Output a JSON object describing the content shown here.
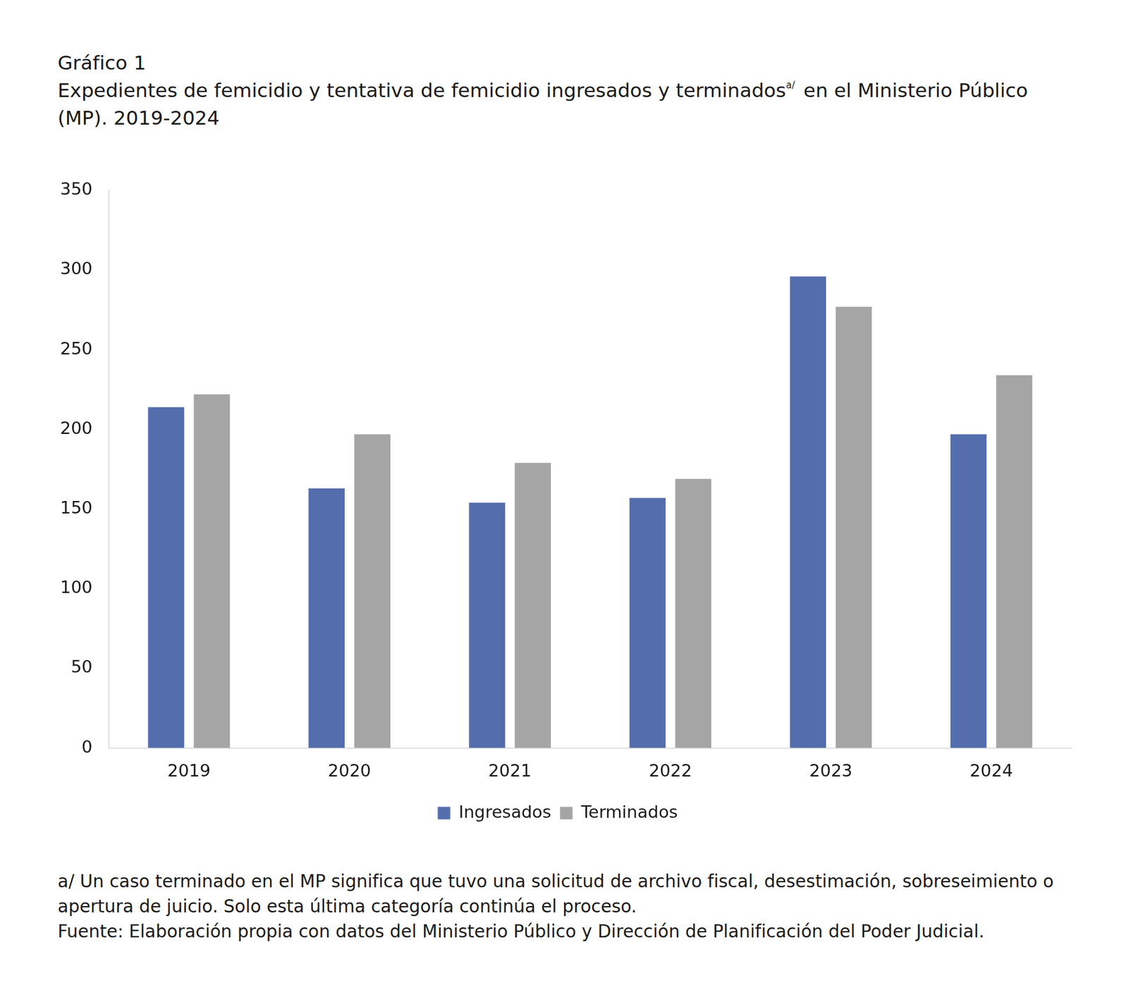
{
  "chart_data": {
    "type": "bar",
    "title": "Gráfico 1",
    "subtitle": [
      "Expedientes de femicidio y tentativa de femicidio ingresados y terminados",
      "a/",
      " en el Ministerio Público (MP). 2019-2024"
    ],
    "categories": [
      "2019",
      "2020",
      "2021",
      "2022",
      "2023",
      "2024"
    ],
    "series": [
      {
        "name": "Ingresados",
        "color": "#546dac",
        "values": [
          214,
          163,
          154,
          157,
          296,
          197
        ]
      },
      {
        "name": "Terminados",
        "color": "#a5a5a5",
        "values": [
          222,
          197,
          179,
          169,
          277,
          234
        ]
      }
    ],
    "ylim": [
      0,
      350
    ],
    "yticks": [
      0,
      50,
      100,
      150,
      200,
      250,
      300,
      350
    ],
    "grid": false,
    "legend": "bottom",
    "notes": [
      "a/ Un caso terminado en el MP significa que tuvo una solicitud de archivo fiscal, desestimación, sobreseimiento o apertura de juicio. Solo esta última categoría continúa el proceso.",
      "Fuente: Elaboración propia con datos del Ministerio Público y Dirección de Planificación del Poder Judicial."
    ]
  }
}
